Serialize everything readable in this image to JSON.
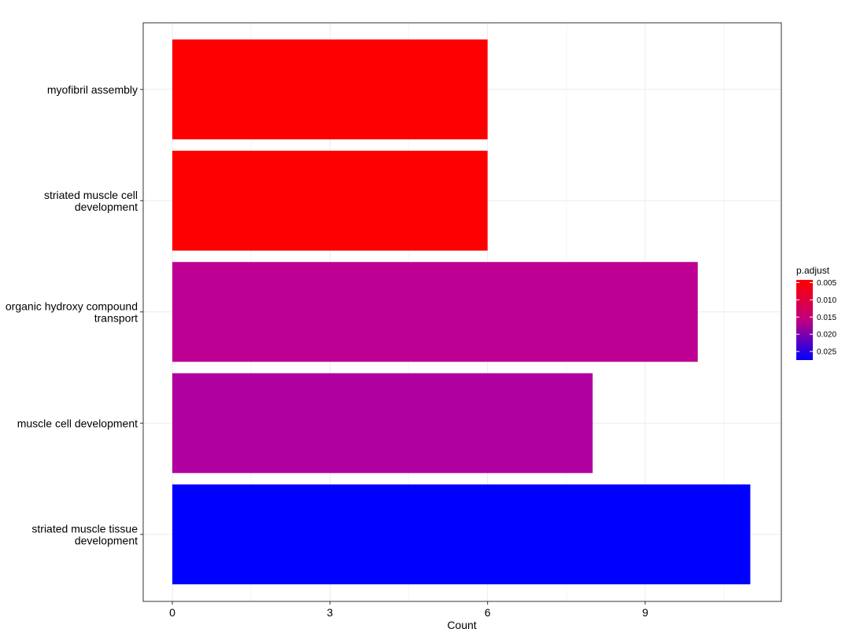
{
  "chart_data": {
    "type": "bar",
    "orientation": "horizontal",
    "xlabel": "Count",
    "ylabel": "",
    "xlim": [
      0,
      11.1
    ],
    "x_ticks": [
      0,
      3,
      6,
      9
    ],
    "grid": true,
    "legend_position": "right",
    "categories": [
      "myofibril assembly",
      "striated muscle cell development",
      "organic hydroxy compound transport",
      "muscle cell development",
      "striated muscle tissue development"
    ],
    "category_labels": [
      [
        "myofibril assembly"
      ],
      [
        "striated muscle cell",
        "development"
      ],
      [
        "organic hydroxy compound",
        "transport"
      ],
      [
        "muscle cell development"
      ],
      [
        "striated muscle tissue",
        "development"
      ]
    ],
    "values": [
      6,
      6,
      10,
      8,
      11
    ],
    "p_adjust": [
      0.0042,
      0.0042,
      0.0145,
      0.0168,
      0.0275
    ],
    "colors": [
      "#ff0000",
      "#ff0000",
      "#bd0093",
      "#b0009f",
      "#0000ff"
    ],
    "legend": {
      "title": "p.adjust",
      "ticks": [
        "0.005",
        "0.010",
        "0.015",
        "0.020",
        "0.025"
      ],
      "tick_values": [
        0.005,
        0.01,
        0.015,
        0.02,
        0.025
      ],
      "range": [
        0.0042,
        0.0275
      ],
      "color_low": "#ff0000",
      "color_high": "#0000ff"
    }
  }
}
